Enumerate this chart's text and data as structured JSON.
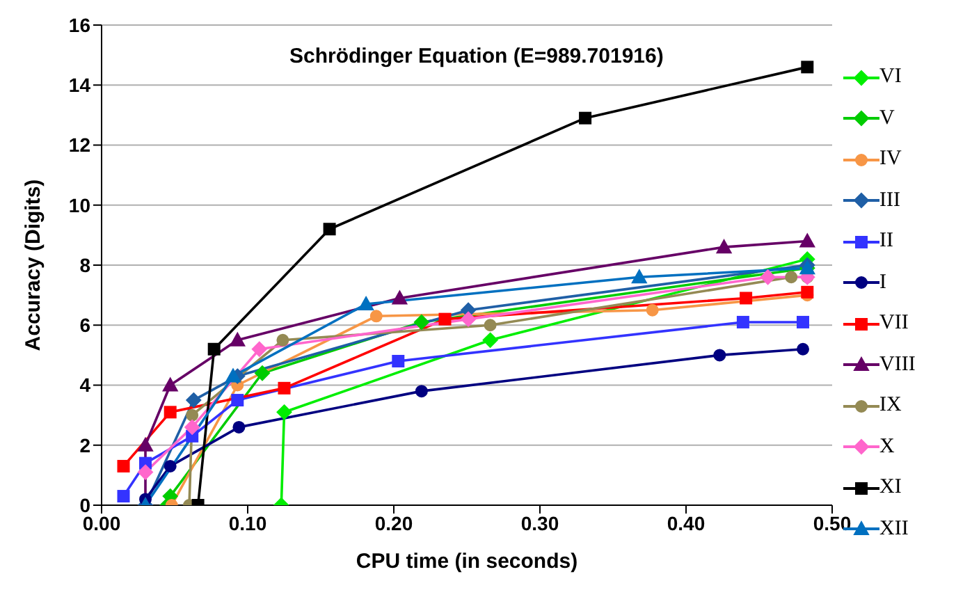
{
  "chart_data": {
    "type": "line",
    "title": "Schrödinger Equation  (E=989.701916)",
    "xlabel": "CPU time (in seconds)",
    "ylabel": "Accuracy (Digits)",
    "xlim": [
      0,
      0.5
    ],
    "xticks": [
      {
        "value": 0,
        "label": "0.00"
      },
      {
        "value": 0.1,
        "label": "0.10"
      },
      {
        "value": 0.2,
        "label": "0.20"
      },
      {
        "value": 0.3,
        "label": "0.30"
      },
      {
        "value": 0.4,
        "label": "0.40"
      },
      {
        "value": 0.5,
        "label": "0.50"
      }
    ],
    "ylim": [
      0,
      16
    ],
    "yticks": [
      0,
      2,
      4,
      6,
      8,
      10,
      12,
      14,
      16
    ],
    "grid": "y",
    "legend": "right",
    "series": [
      {
        "name": "VI",
        "color": "#00ee00",
        "marker": "diamond",
        "x": [
          0.123,
          0.125,
          0.266,
          0.483
        ],
        "values": [
          0,
          3.1,
          5.5,
          8.2
        ]
      },
      {
        "name": "V",
        "color": "#00cc00",
        "marker": "diamond",
        "x": [
          0.045,
          0.047,
          0.11,
          0.219,
          0.483
        ],
        "values": [
          0,
          0.3,
          4.4,
          6.1,
          7.9
        ]
      },
      {
        "name": "IV",
        "color": "#f79646",
        "marker": "circle",
        "x": [
          0.048,
          0.093,
          0.188,
          0.377,
          0.483
        ],
        "values": [
          0,
          4,
          6.3,
          6.5,
          7
        ]
      },
      {
        "name": "III",
        "color": "#1f5fa6",
        "marker": "diamond",
        "x": [
          0.03,
          0.063,
          0.093,
          0.251,
          0.483
        ],
        "values": [
          0,
          3.5,
          4.3,
          6.5,
          8
        ]
      },
      {
        "name": "II",
        "color": "#3333ff",
        "marker": "square",
        "x": [
          0.015,
          0.03,
          0.062,
          0.093,
          0.203,
          0.439,
          0.48
        ],
        "values": [
          0.3,
          1.4,
          2.3,
          3.5,
          4.8,
          6.1,
          6.1
        ]
      },
      {
        "name": "I",
        "color": "#000080",
        "marker": "circle",
        "x": [
          0.03,
          0.047,
          0.094,
          0.219,
          0.423,
          0.48
        ],
        "values": [
          0.2,
          1.3,
          2.6,
          3.8,
          5,
          5.2
        ]
      },
      {
        "name": "VII",
        "color": "#ff0000",
        "marker": "square",
        "x": [
          0.015,
          0.047,
          0.125,
          0.235,
          0.441,
          0.483
        ],
        "values": [
          1.3,
          3.1,
          3.9,
          6.2,
          6.9,
          7.1
        ]
      },
      {
        "name": "VIII",
        "color": "#660066",
        "marker": "triangle",
        "x": [
          0.03,
          0.03,
          0.047,
          0.093,
          0.204,
          0.426,
          0.483
        ],
        "values": [
          0,
          2,
          4,
          5.5,
          6.9,
          8.6,
          8.8
        ]
      },
      {
        "name": "IX",
        "color": "#948a54",
        "marker": "circle",
        "x": [
          0.06,
          0.062,
          0.124,
          0.266,
          0.472,
          0.483
        ],
        "values": [
          0,
          3,
          5.5,
          6,
          7.6,
          7.6
        ]
      },
      {
        "name": "X",
        "color": "#ff66cc",
        "marker": "diamond",
        "x": [
          0.03,
          0.062,
          0.108,
          0.251,
          0.456,
          0.483
        ],
        "values": [
          1.1,
          2.6,
          5.2,
          6.2,
          7.6,
          7.6
        ]
      },
      {
        "name": "XI",
        "color": "#000000",
        "marker": "square",
        "x": [
          0.066,
          0.077,
          0.156,
          0.331,
          0.483
        ],
        "values": [
          0,
          5.2,
          9.2,
          12.9,
          14.6
        ]
      },
      {
        "name": "XII",
        "color": "#0070c0",
        "marker": "triangle",
        "x": [
          0.03,
          0.09,
          0.181,
          0.368,
          0.483
        ],
        "values": [
          0,
          4.3,
          6.7,
          7.6,
          7.9
        ]
      }
    ]
  }
}
